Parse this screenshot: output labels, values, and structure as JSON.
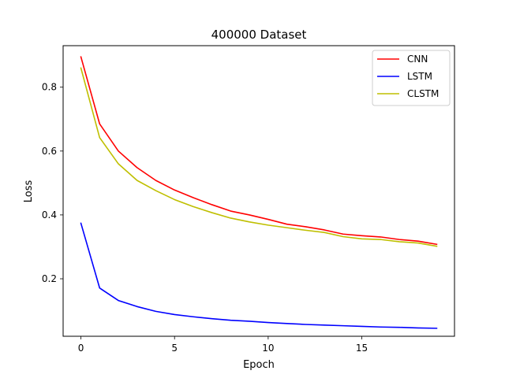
{
  "chart_data": {
    "type": "line",
    "title": "400000 Dataset",
    "xlabel": "Epoch",
    "ylabel": "Loss",
    "xlim": [
      -0.95,
      19.95
    ],
    "ylim": [
      0.02,
      0.93
    ],
    "xticks": [
      0,
      5,
      10,
      15
    ],
    "yticks": [
      0.2,
      0.4,
      0.6,
      0.8
    ],
    "grid": false,
    "legend_position": "top-right",
    "x": [
      0,
      1,
      2,
      3,
      4,
      5,
      6,
      7,
      8,
      9,
      10,
      11,
      12,
      13,
      14,
      15,
      16,
      17,
      18,
      19
    ],
    "series": [
      {
        "name": "CNN",
        "color": "#ff0000",
        "values": [
          0.895,
          0.685,
          0.6,
          0.548,
          0.508,
          0.478,
          0.454,
          0.432,
          0.412,
          0.4,
          0.386,
          0.371,
          0.363,
          0.353,
          0.34,
          0.335,
          0.331,
          0.323,
          0.318,
          0.308
        ]
      },
      {
        "name": "LSTM",
        "color": "#0000ff",
        "values": [
          0.374,
          0.171,
          0.132,
          0.113,
          0.098,
          0.088,
          0.081,
          0.075,
          0.07,
          0.067,
          0.063,
          0.06,
          0.057,
          0.055,
          0.053,
          0.051,
          0.049,
          0.048,
          0.046,
          0.045
        ]
      },
      {
        "name": "CLSTM",
        "color": "#bfbf00",
        "values": [
          0.86,
          0.642,
          0.56,
          0.508,
          0.476,
          0.448,
          0.426,
          0.407,
          0.39,
          0.378,
          0.368,
          0.36,
          0.352,
          0.345,
          0.332,
          0.325,
          0.323,
          0.316,
          0.312,
          0.302
        ]
      }
    ]
  }
}
